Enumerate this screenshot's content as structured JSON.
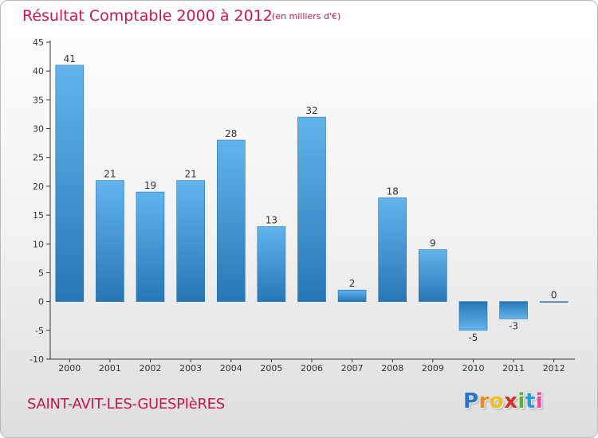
{
  "chart_data": {
    "type": "bar",
    "title": "Résultat Comptable 2000 à 2012",
    "subtitle": "(en milliers d'€)",
    "categories": [
      "2000",
      "2001",
      "2002",
      "2003",
      "2004",
      "2005",
      "2006",
      "2007",
      "2008",
      "2009",
      "2010",
      "2011",
      "2012"
    ],
    "values": [
      41,
      21,
      19,
      21,
      28,
      13,
      32,
      2,
      18,
      9,
      -5,
      -3,
      0
    ],
    "data_labels": [
      "41",
      "21",
      "19",
      "21",
      "28",
      "13",
      "32",
      "2",
      "18",
      "9",
      "-5",
      "-3",
      "0"
    ],
    "ylim": [
      -10,
      45
    ],
    "yticks": [
      -10,
      -5,
      0,
      5,
      10,
      15,
      20,
      25,
      30,
      35,
      40,
      45
    ],
    "xlabel": "",
    "ylabel": "",
    "grid": false,
    "legend": "none"
  },
  "footer": {
    "commune": "SAINT-AVIT-LES-GUESPIèRES",
    "brand_letters": [
      "P",
      "r",
      "o",
      "x",
      "i",
      "t",
      "i"
    ]
  },
  "colors": {
    "title": "#c8174b",
    "bar_light": "#5eb0e8",
    "bar_dark": "#2577b5",
    "brand": [
      "#2a73c8",
      "#f08a1c",
      "#e8c21a",
      "#d62f22",
      "#59b134",
      "#2a9ad6",
      "#e84b9c"
    ]
  }
}
